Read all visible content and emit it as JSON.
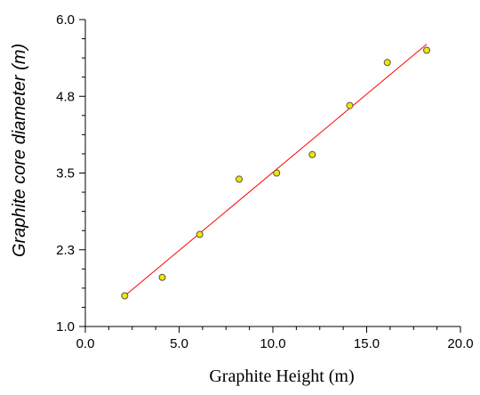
{
  "chart_data": {
    "type": "scatter",
    "title": "",
    "xlabel": "Graphite Height (m)",
    "ylabel": "Graphite core diameter (m)",
    "xlim": [
      0,
      20
    ],
    "ylim": [
      1.0,
      6.0
    ],
    "x_ticks": [
      0.0,
      5.0,
      10.0,
      15.0,
      20.0
    ],
    "x_tick_labels": [
      "0.0",
      "5.0",
      "10.0",
      "15.0",
      "20.0"
    ],
    "y_ticks": [
      1.0,
      2.25,
      3.5,
      4.75,
      6.0
    ],
    "y_tick_labels": [
      "1.0",
      "2.3",
      "3.5",
      "4.8",
      "6.0"
    ],
    "grid": false,
    "legend": "none",
    "series": [
      {
        "x": [
          2.1,
          4.1,
          6.1,
          8.2,
          10.2,
          12.1,
          14.1,
          16.1,
          18.2
        ],
        "y": [
          1.5,
          1.8,
          2.5,
          3.4,
          3.5,
          3.8,
          4.6,
          5.3,
          5.5
        ]
      }
    ],
    "trendline": {
      "x": [
        2.1,
        18.2
      ],
      "y": [
        1.5,
        5.6
      ]
    },
    "colors": {
      "point_fill": "#f2e600",
      "point_stroke": "#555555",
      "trendline": "#ff0000",
      "axis": "#000000"
    }
  }
}
